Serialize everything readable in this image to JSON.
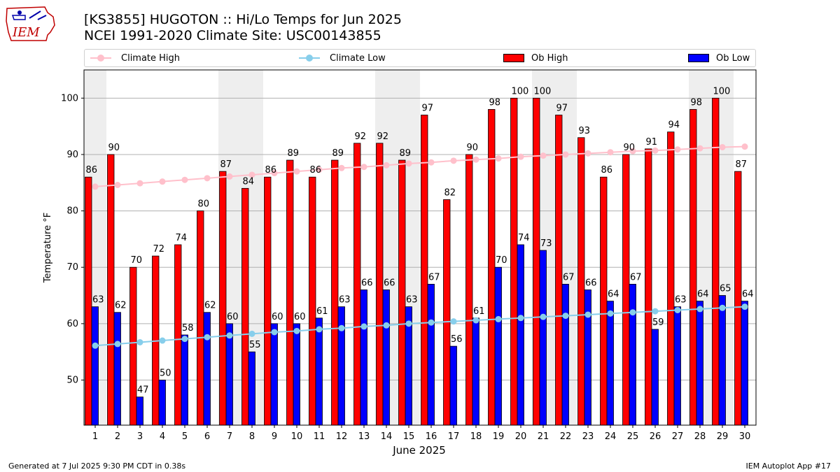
{
  "header": {
    "title_line1": "[KS3855] HUGOTON :: Hi/Lo Temps for Jun 2025",
    "title_line2": "NCEI 1991-2020 Climate Site: USC00143855"
  },
  "logo": {
    "text": "IEM"
  },
  "footer": {
    "left": "Generated at 7 Jul 2025 9:30 PM CDT in 0.38s",
    "right": "IEM Autoplot App #17"
  },
  "legend": {
    "climate_high": "Climate High",
    "climate_low": "Climate Low",
    "ob_high": "Ob High",
    "ob_low": "Ob Low"
  },
  "colors": {
    "ob_high": "#ff0000",
    "ob_low": "#0000ff",
    "climate_high": "#ffc0cb",
    "climate_low": "#87ceeb",
    "weekend_band": "#eeeeee",
    "grid": "#b0b0b0"
  },
  "chart_data": {
    "type": "bar",
    "xlabel": "June 2025",
    "ylabel": "Temperature °F",
    "ylim": [
      42,
      105
    ],
    "yticks": [
      50,
      60,
      70,
      80,
      90,
      100
    ],
    "grid": "horizontal",
    "legend_position": "top",
    "categories": [
      "1",
      "2",
      "3",
      "4",
      "5",
      "6",
      "7",
      "8",
      "9",
      "10",
      "11",
      "12",
      "13",
      "14",
      "15",
      "16",
      "17",
      "18",
      "19",
      "20",
      "21",
      "22",
      "23",
      "24",
      "25",
      "26",
      "27",
      "28",
      "29",
      "30"
    ],
    "weekend_days": [
      1,
      7,
      8,
      14,
      15,
      21,
      22,
      28,
      29
    ],
    "series": [
      {
        "name": "Ob High",
        "kind": "bar",
        "values": [
          86,
          90,
          70,
          72,
          74,
          80,
          87,
          84,
          86,
          89,
          86,
          89,
          92,
          92,
          89,
          97,
          82,
          90,
          98,
          100,
          100,
          97,
          93,
          86,
          90,
          91,
          94,
          98,
          100,
          87
        ]
      },
      {
        "name": "Ob Low",
        "kind": "bar",
        "values": [
          63,
          62,
          47,
          50,
          58,
          62,
          60,
          55,
          60,
          60,
          61,
          63,
          66,
          66,
          63,
          67,
          56,
          61,
          70,
          74,
          73,
          67,
          66,
          64,
          67,
          59,
          63,
          64,
          65,
          64
        ]
      },
      {
        "name": "Climate High",
        "kind": "line",
        "values": [
          84.3,
          84.6,
          84.9,
          85.2,
          85.5,
          85.8,
          86.1,
          86.4,
          86.7,
          87.0,
          87.3,
          87.6,
          87.8,
          88.1,
          88.4,
          88.6,
          88.9,
          89.1,
          89.3,
          89.6,
          89.8,
          90.0,
          90.2,
          90.4,
          90.6,
          90.7,
          90.9,
          91.1,
          91.3,
          91.4
        ]
      },
      {
        "name": "Climate Low",
        "kind": "line",
        "values": [
          56.1,
          56.4,
          56.7,
          57.0,
          57.3,
          57.6,
          57.9,
          58.2,
          58.5,
          58.7,
          59.0,
          59.2,
          59.5,
          59.7,
          60.0,
          60.2,
          60.4,
          60.6,
          60.8,
          61.0,
          61.2,
          61.4,
          61.6,
          61.8,
          62.0,
          62.2,
          62.4,
          62.6,
          62.8,
          63.0
        ]
      }
    ]
  }
}
